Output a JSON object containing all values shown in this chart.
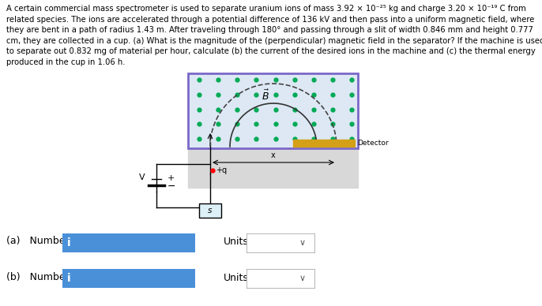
{
  "bg_color": "#ffffff",
  "diagram_border": "#7b68c8",
  "diagram_field_bg": "#dde8f4",
  "diagram_lower_bg": "#d8d8d8",
  "dot_color": "#00aa55",
  "detector_color": "#d4a017",
  "input_box_color": "#4a90d9",
  "label_a": "(a)   Number",
  "label_b": "(b)   Number",
  "units_label": "Units",
  "detector_label": "Detector",
  "V_label": "V",
  "plus_label": "+",
  "minus_label": "−",
  "s_label": "s",
  "x_label": "x",
  "dot_cols": 9,
  "dot_rows": 5,
  "r_large": 80,
  "r_small": 55
}
